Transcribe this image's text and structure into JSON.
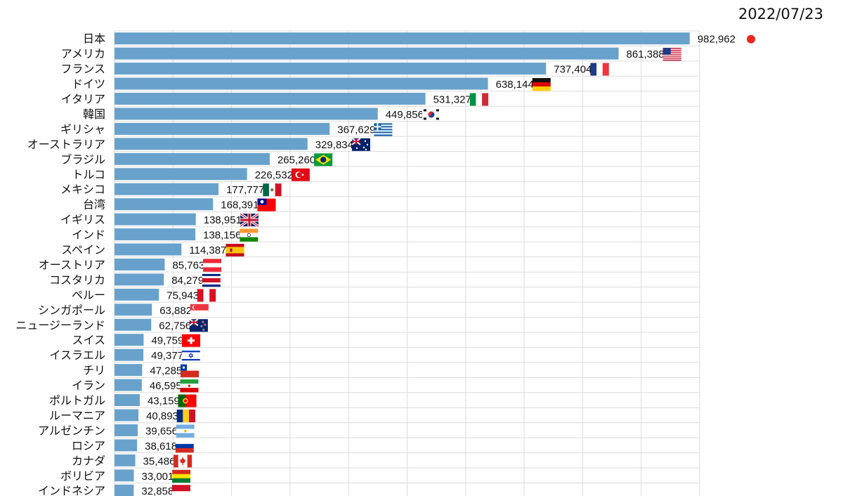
{
  "date": "2022/07/23",
  "colors": {
    "bar": "#68a2cc",
    "grid": "#dcdcdc",
    "marker": "#e8281e",
    "text": "#111111"
  },
  "chart_data": {
    "type": "bar",
    "orientation": "horizontal",
    "grid": true,
    "xlim": [
      0,
      1000000
    ],
    "categories": [
      "日本",
      "アメリカ",
      "フランス",
      "ドイツ",
      "イタリア",
      "韓国",
      "ギリシャ",
      "オーストラリア",
      "ブラジル",
      "トルコ",
      "メキシコ",
      "台湾",
      "イギリス",
      "インド",
      "スペイン",
      "オーストリア",
      "コスタリカ",
      "ペルー",
      "シンガポール",
      "ニュージーランド",
      "スイス",
      "イスラエル",
      "チリ",
      "イラン",
      "ポルトガル",
      "ルーマニア",
      "アルゼンチン",
      "ロシア",
      "カナダ",
      "ボリビア",
      "インドネシア"
    ],
    "values": [
      982962,
      861388,
      737404,
      638144,
      531327,
      449856,
      367629,
      329834,
      265260,
      226532,
      177777,
      168391,
      138951,
      138156,
      114387,
      85763,
      84279,
      75943,
      63882,
      62756,
      49759,
      49377,
      47285,
      46595,
      43159,
      40893,
      39656,
      38618,
      35486,
      33001,
      32858
    ],
    "value_labels": [
      "982,962",
      "861,388",
      "737,404",
      "638,144",
      "531,327",
      "449,856",
      "367,629",
      "329,834",
      "265,260",
      "226,532",
      "177,777",
      "168,391",
      "138,951",
      "138,156",
      "114,387",
      "85,763",
      "84,279",
      "75,943",
      "63,882",
      "62,756",
      "49,759",
      "49,377",
      "47,285",
      "46,595",
      "43,159",
      "40,893",
      "39,656",
      "38,618",
      "35,486",
      "33,001",
      "32,858"
    ],
    "flags": [
      "japan-marker",
      "usa-flag-icon",
      "france-flag-icon",
      "germany-flag-icon",
      "italy-flag-icon",
      "korea-flag-icon",
      "greece-flag-icon",
      "australia-flag-icon",
      "brazil-flag-icon",
      "turkey-flag-icon",
      "mexico-flag-icon",
      "taiwan-flag-icon",
      "uk-flag-icon",
      "india-flag-icon",
      "spain-flag-icon",
      "austria-flag-icon",
      "costa-rica-flag-icon",
      "peru-flag-icon",
      "singapore-flag-icon",
      "new-zealand-flag-icon",
      "switzerland-flag-icon",
      "israel-flag-icon",
      "chile-flag-icon",
      "iran-flag-icon",
      "portugal-flag-icon",
      "romania-flag-icon",
      "argentina-flag-icon",
      "russia-flag-icon",
      "canada-flag-icon",
      "bolivia-flag-icon",
      "indonesia-flag-icon"
    ]
  }
}
